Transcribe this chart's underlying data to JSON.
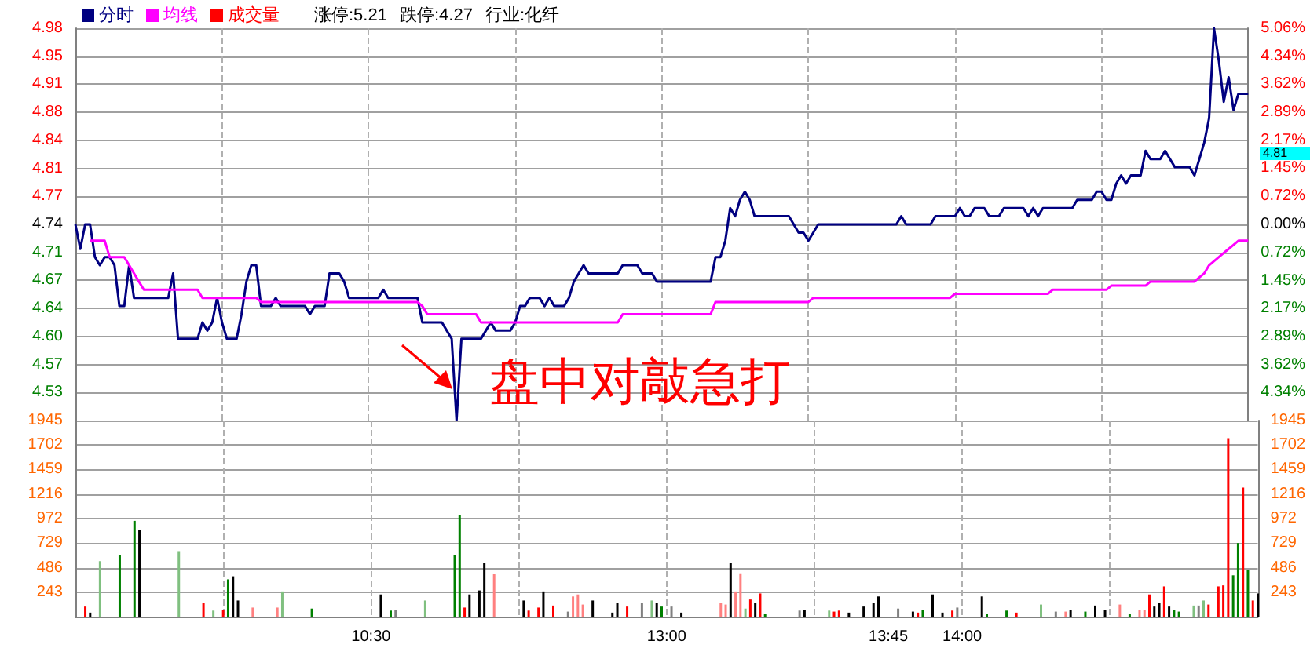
{
  "chart_data": [
    {
      "type": "line",
      "legend": "top left",
      "grid": true,
      "tick_labels": "y",
      "categories": [
        null,
        null,
        null,
        null,
        null,
        null,
        null,
        null,
        null,
        null,
        null,
        null,
        null,
        null,
        null,
        null,
        null,
        null,
        null,
        null,
        null,
        null,
        null,
        null,
        null,
        null,
        null,
        null,
        null,
        null,
        null,
        null,
        null,
        null,
        null,
        null,
        null,
        null,
        null,
        null,
        null,
        null,
        null,
        null,
        null,
        null,
        null,
        null,
        null,
        null,
        null,
        null,
        null,
        null,
        null,
        null,
        null,
        null,
        null,
        null,
        null,
        null,
        null,
        null,
        null,
        null,
        null,
        null,
        null,
        null,
        null,
        null,
        null,
        null,
        null,
        null,
        null,
        null,
        null,
        null,
        null,
        null,
        null,
        null,
        null,
        null,
        null,
        null,
        null,
        null,
        null,
        null,
        null,
        null,
        null,
        null,
        null,
        null,
        null,
        null,
        null,
        null,
        null,
        null,
        null,
        null,
        null,
        null,
        null,
        null,
        null,
        null,
        null,
        null,
        null,
        null,
        null,
        null,
        null,
        null,
        null,
        null,
        null,
        null,
        null,
        null,
        null,
        null,
        null,
        null,
        null,
        null,
        null,
        null,
        null,
        null,
        null,
        null,
        null,
        null,
        null,
        null,
        null,
        null,
        null,
        null,
        null,
        null,
        null,
        null,
        null,
        null,
        null,
        null,
        null,
        null,
        null,
        null,
        null,
        null,
        null,
        null,
        null,
        null,
        null,
        null,
        null,
        null,
        null,
        null,
        null,
        null,
        null,
        null,
        null,
        null,
        null,
        null,
        null,
        null,
        null,
        null,
        null,
        null,
        null,
        null,
        null,
        null,
        null,
        null,
        null,
        null,
        null,
        null,
        null,
        null,
        null,
        null,
        null,
        null,
        null,
        null,
        null,
        null,
        null,
        null,
        null,
        null,
        null,
        null,
        null,
        null,
        null,
        null,
        null,
        null,
        null,
        null,
        null,
        null,
        null,
        null,
        null,
        null,
        null,
        null,
        null,
        null,
        null,
        null,
        null,
        null,
        null,
        null,
        null,
        null,
        null,
        null,
        null,
        null,
        null
      ],
      "ylim": [
        4.4999,
        4.9801
      ],
      "yticks": [
        {
          "value": 4.9801,
          "label": "4.98"
        },
        {
          "value": 4.9458,
          "label": "4.95"
        },
        {
          "value": 4.9115,
          "label": "4.91"
        },
        {
          "value": 4.8772,
          "label": "4.88"
        },
        {
          "value": 4.8429,
          "label": "4.84"
        },
        {
          "value": 4.8086,
          "label": "4.81"
        },
        {
          "value": 4.7743,
          "label": "4.77"
        },
        4.74,
        {
          "value": 4.7057,
          "label": "4.71"
        },
        {
          "value": 4.6714,
          "label": "4.67"
        },
        {
          "value": 4.6371,
          "label": "4.64"
        },
        {
          "value": 4.6028,
          "label": "4.60"
        },
        {
          "value": 4.5685,
          "label": "4.57"
        },
        {
          "value": 4.5342,
          "label": "4.53"
        }
      ],
      "y2lim": [
        -5.06,
        5.06
      ],
      "y2ticks": [
        {
          "value": 5.06,
          "label": "5.06%"
        },
        {
          "value": 4.34,
          "label": "4.34%"
        },
        {
          "value": 3.62,
          "label": "3.62%"
        },
        {
          "value": 2.89,
          "label": "2.89%"
        },
        {
          "value": 2.17,
          "label": "2.17%"
        },
        {
          "value": 1.45,
          "label": "1.45%"
        },
        {
          "value": 0.72,
          "label": "0.72%"
        },
        {
          "value": 0,
          "label": "0.00%"
        },
        {
          "value": -0.72,
          "label": "0.72%"
        },
        {
          "value": -1.45,
          "label": "1.45%"
        },
        {
          "value": -2.17,
          "label": "2.17%"
        },
        {
          "value": -2.89,
          "label": "2.89%"
        },
        {
          "value": -3.62,
          "label": "3.62%"
        },
        {
          "value": -4.34,
          "label": "4.34%"
        }
      ],
      "annotations": [
        "涨停:5.21",
        "跌停:4.27",
        "行业:化纤",
        "盘中对敲急打",
        "4.81"
      ],
      "series": [
        {
          "name": "分时",
          "color": "#000080",
          "values": [
            4.74,
            4.71,
            4.74,
            4.74,
            4.7,
            4.69,
            4.7,
            4.7,
            4.69,
            4.64,
            4.64,
            4.69,
            4.65,
            4.65,
            4.65,
            4.65,
            4.65,
            4.65,
            4.65,
            4.65,
            4.68,
            4.6,
            4.6,
            4.6,
            4.6,
            4.6,
            4.62,
            4.61,
            4.62,
            4.65,
            4.62,
            4.6,
            4.6,
            4.6,
            4.63,
            4.67,
            4.69,
            4.69,
            4.64,
            4.64,
            4.64,
            4.65,
            4.64,
            4.64,
            4.64,
            4.64,
            4.64,
            4.64,
            4.63,
            4.64,
            4.64,
            4.64,
            4.68,
            4.68,
            4.68,
            4.67,
            4.65,
            4.65,
            4.65,
            4.65,
            4.65,
            4.65,
            4.65,
            4.66,
            4.65,
            4.65,
            4.65,
            4.65,
            4.65,
            4.65,
            4.65,
            4.62,
            4.62,
            4.62,
            4.62,
            4.62,
            4.61,
            4.6,
            4.5,
            4.6,
            4.6,
            4.6,
            4.6,
            4.6,
            4.61,
            4.62,
            4.61,
            4.61,
            4.61,
            4.61,
            4.62,
            4.64,
            4.64,
            4.65,
            4.65,
            4.65,
            4.64,
            4.65,
            4.64,
            4.64,
            4.64,
            4.65,
            4.67,
            4.68,
            4.69,
            4.68,
            4.68,
            4.68,
            4.68,
            4.68,
            4.68,
            4.68,
            4.69,
            4.69,
            4.69,
            4.69,
            4.68,
            4.68,
            4.68,
            4.67,
            4.67,
            4.67,
            4.67,
            4.67,
            4.67,
            4.67,
            4.67,
            4.67,
            4.67,
            4.67,
            4.67,
            4.7,
            4.7,
            4.72,
            4.76,
            4.75,
            4.77,
            4.78,
            4.77,
            4.75,
            4.75,
            4.75,
            4.75,
            4.75,
            4.75,
            4.75,
            4.75,
            4.74,
            4.73,
            4.73,
            4.72,
            4.73,
            4.74,
            4.74,
            4.74,
            4.74,
            4.74,
            4.74,
            4.74,
            4.74,
            4.74,
            4.74,
            4.74,
            4.74,
            4.74,
            4.74,
            4.74,
            4.74,
            4.74,
            4.75,
            4.74,
            4.74,
            4.74,
            4.74,
            4.74,
            4.74,
            4.75,
            4.75,
            4.75,
            4.75,
            4.75,
            4.76,
            4.75,
            4.75,
            4.76,
            4.76,
            4.76,
            4.75,
            4.75,
            4.75,
            4.76,
            4.76,
            4.76,
            4.76,
            4.76,
            4.75,
            4.76,
            4.75,
            4.76,
            4.76,
            4.76,
            4.76,
            4.76,
            4.76,
            4.76,
            4.77,
            4.77,
            4.77,
            4.77,
            4.78,
            4.78,
            4.77,
            4.77,
            4.79,
            4.8,
            4.79,
            4.8,
            4.8,
            4.8,
            4.83,
            4.82,
            4.82,
            4.82,
            4.83,
            4.82,
            4.81,
            4.81,
            4.81,
            4.81,
            4.8,
            4.82,
            4.84,
            4.87,
            4.98,
            4.94,
            4.89,
            4.92,
            4.88,
            4.9,
            4.9,
            4.9
          ]
        },
        {
          "name": "均线",
          "color": "#ff00ff",
          "values": [
            null,
            null,
            null,
            4.72,
            4.72,
            4.72,
            4.72,
            4.7,
            4.7,
            4.7,
            4.7,
            4.69,
            4.68,
            4.67,
            4.66,
            4.66,
            4.66,
            4.66,
            4.66,
            4.66,
            4.66,
            4.66,
            4.66,
            4.66,
            4.66,
            4.66,
            4.65,
            4.65,
            4.65,
            4.65,
            4.65,
            4.65,
            4.65,
            4.65,
            4.65,
            4.65,
            4.65,
            4.65,
            4.645,
            4.645,
            4.645,
            4.645,
            4.645,
            4.645,
            4.645,
            4.645,
            4.645,
            4.645,
            4.645,
            4.645,
            4.645,
            4.645,
            4.645,
            4.645,
            4.645,
            4.645,
            4.645,
            4.645,
            4.645,
            4.645,
            4.645,
            4.645,
            4.645,
            4.645,
            4.645,
            4.645,
            4.645,
            4.645,
            4.645,
            4.645,
            4.645,
            4.64,
            4.63,
            4.63,
            4.63,
            4.63,
            4.63,
            4.63,
            4.63,
            4.63,
            4.63,
            4.63,
            4.63,
            4.62,
            4.62,
            4.62,
            4.62,
            4.62,
            4.62,
            4.62,
            4.62,
            4.62,
            4.62,
            4.62,
            4.62,
            4.62,
            4.62,
            4.62,
            4.62,
            4.62,
            4.62,
            4.62,
            4.62,
            4.62,
            4.62,
            4.62,
            4.62,
            4.62,
            4.62,
            4.62,
            4.62,
            4.62,
            4.63,
            4.63,
            4.63,
            4.63,
            4.63,
            4.63,
            4.63,
            4.63,
            4.63,
            4.63,
            4.63,
            4.63,
            4.63,
            4.63,
            4.63,
            4.63,
            4.63,
            4.63,
            4.63,
            4.645,
            4.645,
            4.645,
            4.645,
            4.645,
            4.645,
            4.645,
            4.645,
            4.645,
            4.645,
            4.645,
            4.645,
            4.645,
            4.645,
            4.645,
            4.645,
            4.645,
            4.645,
            4.645,
            4.645,
            4.65,
            4.65,
            4.65,
            4.65,
            4.65,
            4.65,
            4.65,
            4.65,
            4.65,
            4.65,
            4.65,
            4.65,
            4.65,
            4.65,
            4.65,
            4.65,
            4.65,
            4.65,
            4.65,
            4.65,
            4.65,
            4.65,
            4.65,
            4.65,
            4.65,
            4.65,
            4.65,
            4.65,
            4.65,
            4.655,
            4.655,
            4.655,
            4.655,
            4.655,
            4.655,
            4.655,
            4.655,
            4.655,
            4.655,
            4.655,
            4.655,
            4.655,
            4.655,
            4.655,
            4.655,
            4.655,
            4.655,
            4.655,
            4.655,
            4.66,
            4.66,
            4.66,
            4.66,
            4.66,
            4.66,
            4.66,
            4.66,
            4.66,
            4.66,
            4.66,
            4.66,
            4.665,
            4.665,
            4.665,
            4.665,
            4.665,
            4.665,
            4.665,
            4.665,
            4.67,
            4.67,
            4.67,
            4.67,
            4.67,
            4.67,
            4.67,
            4.67,
            4.67,
            4.67,
            4.675,
            4.68,
            4.69,
            4.695,
            4.7,
            4.705,
            4.71,
            4.715,
            4.72,
            4.72,
            4.72
          ]
        }
      ]
    },
    {
      "type": "bar",
      "grid": true,
      "categories": [
        null,
        null,
        null,
        null,
        null,
        null,
        null,
        null,
        null,
        null,
        null,
        null,
        null,
        null,
        null,
        null,
        null,
        null,
        null,
        null,
        null,
        null,
        null,
        null,
        null,
        null,
        null,
        null,
        null,
        null,
        null,
        null,
        null,
        null,
        null,
        null,
        null,
        null,
        null,
        null,
        null,
        null,
        null,
        null,
        null,
        null,
        null,
        null,
        null,
        null,
        null,
        null,
        null,
        null,
        null,
        null,
        null,
        null,
        null,
        null,
        "10:30",
        null,
        null,
        null,
        null,
        null,
        null,
        null,
        null,
        null,
        null,
        null,
        null,
        null,
        null,
        null,
        null,
        null,
        null,
        null,
        null,
        null,
        null,
        null,
        null,
        null,
        null,
        null,
        null,
        null,
        null,
        null,
        null,
        null,
        null,
        null,
        null,
        null,
        null,
        null,
        null,
        null,
        null,
        null,
        null,
        null,
        null,
        null,
        null,
        null,
        null,
        null,
        null,
        null,
        null,
        null,
        null,
        null,
        null,
        null,
        "13:00",
        null,
        null,
        null,
        null,
        null,
        null,
        null,
        null,
        null,
        null,
        null,
        null,
        null,
        null,
        null,
        null,
        null,
        null,
        null,
        null,
        null,
        null,
        null,
        null,
        null,
        null,
        null,
        null,
        null,
        null,
        null,
        null,
        null,
        null,
        null,
        null,
        null,
        null,
        null,
        null,
        null,
        null,
        null,
        null,
        "13:45",
        null,
        null,
        null,
        null,
        null,
        null,
        null,
        null,
        null,
        null,
        null,
        null,
        null,
        null,
        "14:00",
        null,
        null,
        null,
        null,
        null,
        null,
        null,
        null,
        null,
        null,
        null,
        null,
        null,
        null,
        null,
        null,
        null,
        null,
        null,
        null,
        null,
        null,
        null,
        null,
        null,
        null,
        null,
        null,
        null,
        null,
        null,
        null,
        null,
        null,
        null,
        null,
        null,
        null,
        null,
        null,
        null,
        null,
        null,
        null,
        null,
        null,
        null,
        null,
        null,
        null,
        null,
        null,
        null,
        null,
        null,
        null,
        null,
        null,
        null,
        null
      ],
      "ylim": [
        0,
        1945
      ],
      "yticks": [
        243,
        486,
        729,
        972,
        1216,
        1459,
        1702,
        1945
      ],
      "y2lim": [
        0,
        1945
      ],
      "y2ticks": [
        243,
        486,
        729,
        972,
        1216,
        1459,
        1702,
        1945
      ],
      "series": [
        {
          "name": "成交量",
          "color": "#ff0000",
          "values": [
            null,
            null,
            100,
            40,
            null,
            550,
            null,
            null,
            null,
            610,
            null,
            null,
            950,
            860,
            null,
            null,
            null,
            null,
            null,
            null,
            null,
            650,
            null,
            null,
            null,
            null,
            140,
            null,
            60,
            null,
            70,
            370,
            400,
            160,
            null,
            null,
            90,
            null,
            null,
            null,
            null,
            90,
            250,
            null,
            null,
            null,
            null,
            null,
            80,
            null,
            null,
            null,
            null,
            null,
            null,
            null,
            null,
            null,
            null,
            null,
            null,
            null,
            220,
            null,
            60,
            70,
            null,
            null,
            null,
            null,
            null,
            160,
            null,
            null,
            null,
            null,
            null,
            610,
            1010,
            90,
            220,
            null,
            260,
            530,
            null,
            420,
            null,
            null,
            null,
            null,
            null,
            160,
            60,
            null,
            90,
            250,
            null,
            110,
            null,
            null,
            50,
            200,
            220,
            120,
            null,
            160,
            null,
            null,
            null,
            40,
            140,
            null,
            100,
            null,
            null,
            140,
            null,
            160,
            140,
            100,
            null,
            100,
            null,
            40,
            null,
            null,
            null,
            null,
            null,
            null,
            null,
            140,
            120,
            530,
            250,
            430,
            80,
            170,
            140,
            230,
            30,
            null,
            null,
            null,
            null,
            null,
            null,
            60,
            70,
            null,
            null,
            null,
            null,
            60,
            50,
            60,
            null,
            40,
            null,
            null,
            100,
            null,
            140,
            200,
            null,
            null,
            null,
            80,
            null,
            null,
            50,
            40,
            70,
            null,
            220,
            null,
            40,
            null,
            60,
            90,
            null,
            null,
            null,
            null,
            200,
            30,
            null,
            null,
            null,
            60,
            null,
            40,
            null,
            null,
            null,
            null,
            120,
            null,
            null,
            50,
            null,
            50,
            70,
            null,
            null,
            50,
            null,
            110,
            null,
            70,
            null,
            null,
            120,
            null,
            30,
            null,
            70,
            70,
            220,
            100,
            140,
            300,
            100,
            70,
            50,
            null,
            null,
            110,
            110,
            160,
            120,
            null,
            300,
            310,
            1770,
            410,
            730,
            1280,
            460,
            160,
            230
          ],
          "colors": [
            null,
            null,
            "#ff0000",
            "#000000",
            null,
            "#80c080",
            null,
            null,
            null,
            "#008000",
            null,
            null,
            "#008000",
            "#000000",
            null,
            null,
            null,
            null,
            null,
            null,
            null,
            "#80c080",
            null,
            null,
            null,
            null,
            "#ff0000",
            null,
            "#80c080",
            null,
            "#ff0000",
            "#008000",
            "#000000",
            "#000000",
            null,
            null,
            "#ff8080",
            null,
            null,
            null,
            null,
            "#ff8080",
            "#80c080",
            null,
            null,
            null,
            null,
            null,
            "#008000",
            null,
            null,
            null,
            null,
            null,
            null,
            null,
            null,
            null,
            null,
            null,
            null,
            null,
            "#000000",
            null,
            "#008000",
            "#808080",
            null,
            null,
            null,
            null,
            null,
            "#80c080",
            null,
            null,
            null,
            null,
            null,
            "#008000",
            "#008000",
            "#ff0000",
            "#000000",
            null,
            "#000000",
            "#000000",
            null,
            "#ff8080",
            null,
            null,
            null,
            null,
            null,
            "#000000",
            "#ff0000",
            null,
            "#ff0000",
            "#000000",
            null,
            "#ff0000",
            null,
            null,
            "#808080",
            "#ff8080",
            "#ff8080",
            "#ff8080",
            null,
            "#000000",
            null,
            null,
            null,
            "#000000",
            "#000000",
            null,
            "#ff0000",
            null,
            null,
            "#808080",
            null,
            "#80c080",
            "#000000",
            "#008000",
            null,
            "#808080",
            null,
            "#000000",
            null,
            null,
            null,
            null,
            null,
            null,
            null,
            "#ff8080",
            "#ff8080",
            "#000000",
            "#ff8080",
            "#ff8080",
            "#80c080",
            "#ff0000",
            "#000000",
            "#ff0000",
            "#008000",
            null,
            null,
            null,
            null,
            null,
            null,
            "#808080",
            "#000000",
            null,
            null,
            null,
            null,
            "#80c080",
            "#ff0000",
            "#ff0000",
            null,
            "#000000",
            null,
            null,
            "#000000",
            null,
            "#000000",
            "#000000",
            null,
            null,
            null,
            "#808080",
            null,
            null,
            "#000000",
            "#ff0000",
            "#008000",
            null,
            "#000000",
            null,
            "#000000",
            null,
            "#ff0000",
            "#808080",
            null,
            null,
            null,
            null,
            "#000000",
            "#008000",
            null,
            null,
            null,
            "#008000",
            null,
            "#ff0000",
            null,
            null,
            null,
            null,
            "#80c080",
            null,
            null,
            "#808080",
            null,
            "#ff8080",
            "#000000",
            null,
            null,
            "#008000",
            null,
            "#000000",
            null,
            "#000000",
            null,
            null,
            "#ff8080",
            null,
            "#008000",
            null,
            "#ff8080",
            "#ff8080",
            "#ff0000",
            "#000000",
            "#000000",
            "#ff0000",
            "#000000",
            "#008000",
            "#008000",
            null,
            null,
            "#80c080",
            "#808080",
            "#80c080",
            "#ff0000",
            null,
            "#ff0000",
            "#ff0000",
            "#ff0000",
            "#008000",
            "#008000",
            "#ff0000",
            "#008000",
            "#ff0000",
            "#000000"
          ]
        }
      ]
    }
  ]
}
